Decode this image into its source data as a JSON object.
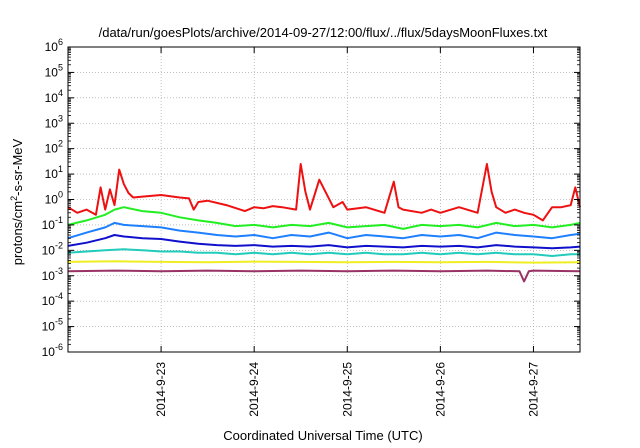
{
  "chart_data": {
    "type": "line",
    "title": "/data/run/goesPlots/archive/2014-09-27/12:00/flux/../flux/5daysMoonFluxes.txt",
    "xlabel": "Coordinated Universal Time (UTC)",
    "ylabel": {
      "base": "protons/cm",
      "sup": "2",
      "rest": "-s-sr-MeV"
    },
    "yscale": "log",
    "ylim_exp": [
      -6,
      6
    ],
    "y_ticks": [
      {
        "base": "10",
        "exp": "-6"
      },
      {
        "base": "10",
        "exp": "-5"
      },
      {
        "base": "10",
        "exp": "-4"
      },
      {
        "base": "10",
        "exp": "-3"
      },
      {
        "base": "10",
        "exp": "-2"
      },
      {
        "base": "10",
        "exp": "-1"
      },
      {
        "base": "10",
        "exp": "0"
      },
      {
        "base": "10",
        "exp": "1"
      },
      {
        "base": "10",
        "exp": "2"
      },
      {
        "base": "10",
        "exp": "3"
      },
      {
        "base": "10",
        "exp": "4"
      },
      {
        "base": "10",
        "exp": "5"
      },
      {
        "base": "10",
        "exp": "6"
      }
    ],
    "x_range_days": [
      0,
      5.5
    ],
    "x_ticks": [
      {
        "day": 1,
        "label": "2014-9-23"
      },
      {
        "day": 2,
        "label": "2014-9-24"
      },
      {
        "day": 3,
        "label": "2014-9-25"
      },
      {
        "day": 4,
        "label": "2014-9-26"
      },
      {
        "day": 5,
        "label": "2014-9-27"
      }
    ],
    "grid": true,
    "series": [
      {
        "color": "#ee1111",
        "x": [
          0.0,
          0.1,
          0.2,
          0.3,
          0.35,
          0.4,
          0.45,
          0.5,
          0.55,
          0.6,
          0.65,
          0.7,
          0.8,
          1.0,
          1.2,
          1.3,
          1.35,
          1.4,
          1.5,
          1.7,
          1.9,
          2.0,
          2.1,
          2.2,
          2.3,
          2.45,
          2.5,
          2.55,
          2.6,
          2.7,
          2.85,
          2.95,
          3.0,
          3.2,
          3.4,
          3.5,
          3.55,
          3.6,
          3.8,
          3.9,
          4.0,
          4.2,
          4.4,
          4.5,
          4.55,
          4.6,
          4.7,
          4.8,
          4.9,
          5.0,
          5.1,
          5.2,
          5.3,
          5.4,
          5.45,
          5.5
        ],
        "y": [
          0.5,
          0.3,
          0.4,
          0.25,
          3,
          0.4,
          2.5,
          0.6,
          15,
          4,
          1.8,
          1.2,
          1.3,
          1.5,
          1.2,
          1.1,
          0.4,
          0.8,
          0.9,
          0.6,
          0.35,
          0.5,
          0.45,
          0.55,
          0.5,
          0.4,
          25,
          2,
          0.4,
          6,
          0.5,
          0.8,
          0.4,
          0.5,
          0.3,
          5,
          0.5,
          0.4,
          0.3,
          0.4,
          0.3,
          0.5,
          0.3,
          25,
          2,
          0.5,
          0.3,
          0.4,
          0.3,
          0.25,
          0.15,
          0.5,
          0.5,
          0.6,
          3,
          0.5
        ]
      },
      {
        "color": "#22ee22",
        "x": [
          0.0,
          0.2,
          0.4,
          0.5,
          0.6,
          0.8,
          1.0,
          1.2,
          1.4,
          1.6,
          1.8,
          2.0,
          2.2,
          2.4,
          2.6,
          2.8,
          3.0,
          3.2,
          3.4,
          3.6,
          3.8,
          4.0,
          4.2,
          4.4,
          4.6,
          4.8,
          5.0,
          5.2,
          5.4,
          5.5
        ],
        "y": [
          0.1,
          0.15,
          0.25,
          0.4,
          0.5,
          0.35,
          0.3,
          0.2,
          0.15,
          0.12,
          0.09,
          0.1,
          0.08,
          0.1,
          0.09,
          0.12,
          0.08,
          0.09,
          0.1,
          0.07,
          0.1,
          0.09,
          0.1,
          0.08,
          0.12,
          0.09,
          0.1,
          0.08,
          0.1,
          0.12
        ]
      },
      {
        "color": "#1e7fff",
        "x": [
          0.0,
          0.2,
          0.4,
          0.5,
          0.6,
          0.8,
          1.0,
          1.2,
          1.4,
          1.6,
          1.8,
          2.0,
          2.2,
          2.4,
          2.6,
          2.8,
          3.0,
          3.2,
          3.4,
          3.6,
          3.8,
          4.0,
          4.2,
          4.4,
          4.6,
          4.8,
          5.0,
          5.2,
          5.4,
          5.5
        ],
        "y": [
          0.03,
          0.05,
          0.08,
          0.12,
          0.1,
          0.09,
          0.08,
          0.06,
          0.05,
          0.04,
          0.035,
          0.04,
          0.03,
          0.04,
          0.035,
          0.05,
          0.03,
          0.04,
          0.035,
          0.03,
          0.04,
          0.035,
          0.04,
          0.03,
          0.05,
          0.04,
          0.035,
          0.03,
          0.04,
          0.045
        ]
      },
      {
        "color": "#1010cc",
        "x": [
          0.0,
          0.2,
          0.4,
          0.5,
          0.6,
          0.8,
          1.0,
          1.2,
          1.4,
          1.6,
          1.8,
          2.0,
          2.2,
          2.4,
          2.6,
          2.8,
          3.0,
          3.2,
          3.4,
          3.6,
          3.8,
          4.0,
          4.2,
          4.4,
          4.6,
          4.8,
          5.0,
          5.2,
          5.4,
          5.5
        ],
        "y": [
          0.015,
          0.02,
          0.03,
          0.04,
          0.035,
          0.03,
          0.028,
          0.022,
          0.018,
          0.016,
          0.015,
          0.016,
          0.014,
          0.015,
          0.014,
          0.016,
          0.013,
          0.015,
          0.014,
          0.013,
          0.015,
          0.014,
          0.015,
          0.013,
          0.016,
          0.014,
          0.013,
          0.012,
          0.013,
          0.014
        ]
      },
      {
        "color": "#22ccbb",
        "x": [
          0.0,
          0.2,
          0.4,
          0.6,
          0.8,
          1.0,
          1.2,
          1.4,
          1.6,
          1.8,
          2.0,
          2.2,
          2.4,
          2.6,
          2.8,
          3.0,
          3.2,
          3.4,
          3.6,
          3.8,
          4.0,
          4.2,
          4.4,
          4.6,
          4.8,
          5.0,
          5.2,
          5.4,
          5.5
        ],
        "y": [
          0.008,
          0.009,
          0.01,
          0.011,
          0.01,
          0.009,
          0.009,
          0.008,
          0.008,
          0.007,
          0.008,
          0.007,
          0.008,
          0.007,
          0.008,
          0.007,
          0.008,
          0.007,
          0.007,
          0.008,
          0.007,
          0.008,
          0.007,
          0.008,
          0.007,
          0.007,
          0.006,
          0.007,
          0.007
        ]
      },
      {
        "color": "#eeee22",
        "x": [
          0.0,
          0.5,
          1.0,
          1.5,
          2.0,
          2.5,
          3.0,
          3.5,
          4.0,
          4.5,
          5.0,
          5.5
        ],
        "y": [
          0.0035,
          0.0037,
          0.0035,
          0.0034,
          0.0036,
          0.0035,
          0.0034,
          0.0035,
          0.0034,
          0.0035,
          0.0033,
          0.0034
        ]
      },
      {
        "color": "#993366",
        "x": [
          0.0,
          0.5,
          1.0,
          1.5,
          2.0,
          2.5,
          3.0,
          3.5,
          4.0,
          4.5,
          4.85,
          4.9,
          4.95,
          5.0,
          5.5
        ],
        "y": [
          0.0015,
          0.0016,
          0.0015,
          0.0016,
          0.0015,
          0.0016,
          0.0015,
          0.0016,
          0.0015,
          0.0016,
          0.0015,
          0.0006,
          0.0015,
          0.0016,
          0.0015
        ]
      }
    ]
  }
}
